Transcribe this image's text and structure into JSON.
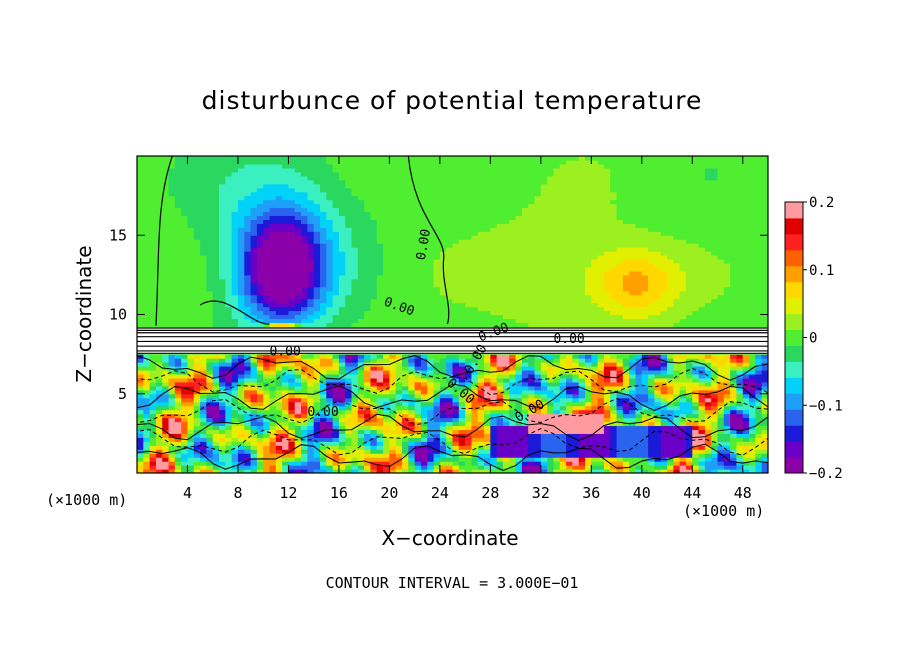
{
  "chart_data": {
    "type": "heatmap",
    "title": "disturbunce of potential temperature",
    "xlabel": "X−coordinate",
    "ylabel": "Z−coordinate",
    "x_unit": "(×1000 m)",
    "y_unit": "(×1000 m)",
    "xlim": [
      0,
      50
    ],
    "ylim": [
      0,
      20
    ],
    "x_ticks": [
      4,
      8,
      12,
      16,
      20,
      24,
      28,
      32,
      36,
      40,
      44,
      48
    ],
    "y_ticks": [
      5,
      10,
      15
    ],
    "colorbar": {
      "min": -0.2,
      "max": 0.2,
      "tick_values": [
        0.2,
        0.1,
        0,
        -0.1,
        -0.2
      ],
      "tick_labels": [
        "0.2",
        "0.1",
        "0",
        "−0.1",
        "−0.2"
      ],
      "colors": [
        "#8b00a8",
        "#6a00c8",
        "#1a1ad8",
        "#2a64ee",
        "#1ea0f8",
        "#00d2f8",
        "#3af0c0",
        "#2ad860",
        "#50ee30",
        "#9cf020",
        "#e0f000",
        "#ffd800",
        "#ffa000",
        "#ff6000",
        "#ff2020",
        "#e00000",
        "#ff9aa0"
      ]
    },
    "contour_labels": [
      "0.00",
      "0.00",
      "0.00",
      "0.00",
      "0.00",
      "0.00",
      "0.00",
      "0.00",
      "0.00"
    ],
    "contour_interval": "CONTOUR INTERVAL = 3.000E−01",
    "field_features": [
      {
        "name": "cold-core",
        "x": 11.5,
        "z": 12.5,
        "value": -0.18
      },
      {
        "name": "upper-warm-patch",
        "x": 39.5,
        "z": 12,
        "value": 0.08
      },
      {
        "name": "stratiform-band",
        "x_range": [
          0,
          50
        ],
        "z_range": [
          7.5,
          9.2
        ],
        "value": 0.0
      },
      {
        "name": "turbulent-boundary-layer",
        "x_range": [
          0,
          50
        ],
        "z_range": [
          0,
          7.5
        ],
        "value_range": [
          -0.2,
          0.2
        ]
      }
    ]
  }
}
